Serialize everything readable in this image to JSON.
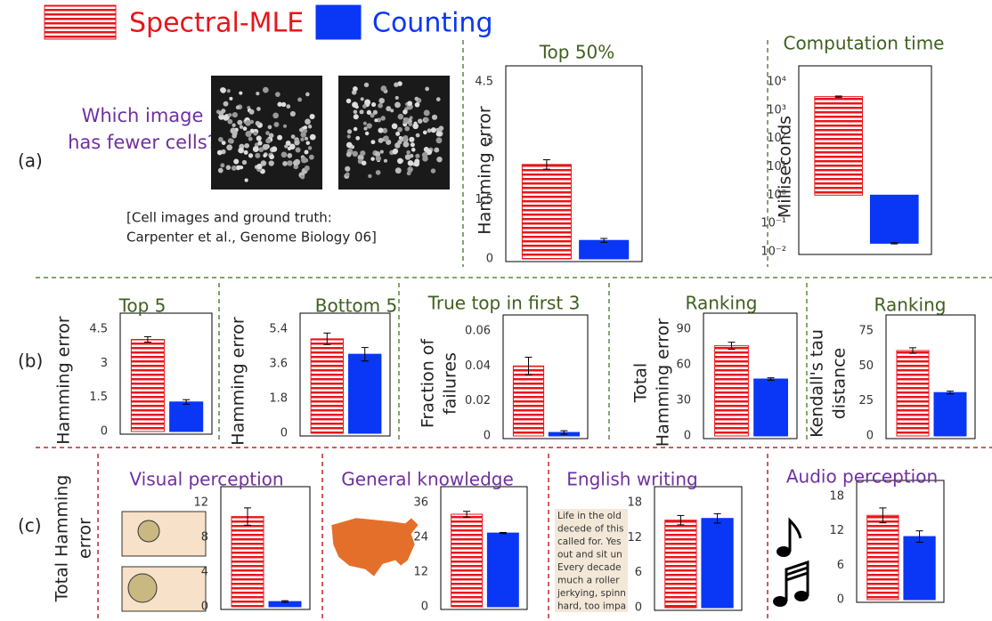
{
  "legend": [
    {
      "name": "Spectral-MLE",
      "color": "#e8151b",
      "pattern": "stripes"
    },
    {
      "name": "Counting",
      "color": "#0a36f5",
      "pattern": "solid"
    }
  ],
  "panel_labels": [
    "(a)",
    "(b)",
    "(c)"
  ],
  "question": [
    "Which image",
    "has fewer cells?"
  ],
  "citation": [
    "[Cell images and ground truth:",
    "Carpenter et al., Genome Biology 06]"
  ],
  "row_c_ylabel": [
    "Total Hamming",
    "error"
  ],
  "writing_sample": [
    "Life in the old",
    "decede of this",
    "called for. Yes",
    "out and sit un",
    "Every decade",
    "much a roller",
    "jerkying, spinn",
    "hard, too impa"
  ],
  "chart_data": [
    {
      "type": "bar",
      "title": "Top 50%",
      "title_color": "#3f5f1f",
      "ylabel": [
        "Hamming error"
      ],
      "ylim": [
        0,
        4.5
      ],
      "yticks": [
        0,
        1.5,
        3,
        4.5
      ],
      "values": [
        2.4,
        0.47
      ],
      "errors": [
        0.12,
        0.05
      ]
    },
    {
      "type": "bar",
      "title": "Computation time",
      "title_color": "#3f5f1f",
      "ylabel": [
        "Milliseconds"
      ],
      "scale": "log",
      "ylim": [
        0.01,
        10000
      ],
      "yticks": [
        {
          "value": 0.01,
          "label": "10⁻²"
        },
        {
          "value": 0.1,
          "label": "10⁻¹"
        },
        {
          "value": 1,
          "label": "10⁰"
        },
        {
          "value": 10,
          "label": "10¹"
        },
        {
          "value": 100,
          "label": "10²"
        },
        {
          "value": 1000,
          "label": "10³"
        },
        {
          "value": 10000,
          "label": "10⁴"
        }
      ],
      "values": [
        3000,
        0.02
      ],
      "errors": [
        150,
        0.001
      ]
    },
    {
      "type": "bar",
      "title": "Top 5",
      "title_color": "#3f5f1f",
      "ylabel": [
        "Hamming error"
      ],
      "ylim": [
        0,
        4.5
      ],
      "yticks": [
        0,
        1.5,
        3,
        4.5
      ],
      "values": [
        4.05,
        1.3
      ],
      "errors": [
        0.12,
        0.1
      ]
    },
    {
      "type": "bar",
      "title": "Bottom 5",
      "title_color": "#3f5f1f",
      "ylabel": [
        "Hamming error"
      ],
      "ylim": [
        0,
        5.4
      ],
      "yticks": [
        0,
        1.8,
        3.6,
        5.4
      ],
      "values": [
        4.9,
        4.1
      ],
      "errors": [
        0.3,
        0.35
      ]
    },
    {
      "type": "bar",
      "title": "True top in first 3",
      "title_color": "#3f5f1f",
      "ylabel": [
        "Fraction of",
        "failures"
      ],
      "ylim": [
        0,
        0.06
      ],
      "yticks": [
        0,
        0.02,
        0.04,
        0.06
      ],
      "values": [
        0.04,
        0.002
      ],
      "errors": [
        0.005,
        0.001
      ]
    },
    {
      "type": "bar",
      "title": "Ranking",
      "title_color": "#3f5f1f",
      "ylabel": [
        "Total",
        "Hamming error"
      ],
      "ylim": [
        0,
        90
      ],
      "yticks": [
        0,
        30,
        60,
        90
      ],
      "values": [
        76,
        48
      ],
      "errors": [
        3,
        1
      ]
    },
    {
      "type": "bar",
      "title": "Ranking",
      "title_color": "#3f5f1f",
      "ylabel": [
        "Kendall's tau",
        "distance"
      ],
      "ylim": [
        0,
        75
      ],
      "yticks": [
        0,
        25,
        50,
        75
      ],
      "values": [
        61,
        31
      ],
      "errors": [
        2,
        1
      ]
    },
    {
      "type": "bar",
      "title": "Visual perception",
      "title_color": "#7030a0",
      "ylim": [
        0,
        12
      ],
      "yticks": [
        0,
        4,
        8,
        12
      ],
      "values": [
        10.4,
        0.6
      ],
      "errors": [
        1,
        0.1
      ]
    },
    {
      "type": "bar",
      "title": "General knowledge",
      "title_color": "#7030a0",
      "ylim": [
        0,
        36
      ],
      "yticks": [
        0,
        12,
        24,
        36
      ],
      "values": [
        32,
        25.5
      ],
      "errors": [
        1,
        0.2
      ]
    },
    {
      "type": "bar",
      "title": "English writing",
      "title_color": "#7030a0",
      "ylim": [
        0,
        18
      ],
      "yticks": [
        0,
        6,
        12,
        18
      ],
      "values": [
        15,
        15.3
      ],
      "errors": [
        0.8,
        0.8
      ]
    },
    {
      "type": "bar",
      "title": "Audio perception",
      "title_color": "#7030a0",
      "ylim": [
        0,
        18
      ],
      "yticks": [
        0,
        6,
        12,
        18
      ],
      "values": [
        14.7,
        11
      ],
      "errors": [
        1.3,
        1
      ]
    }
  ]
}
